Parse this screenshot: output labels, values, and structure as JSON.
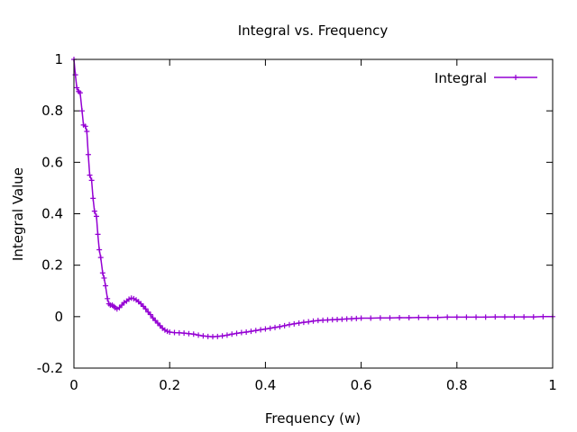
{
  "chart_data": {
    "type": "line",
    "title": "Integral vs. Frequency",
    "xlabel": "Frequency (w)",
    "ylabel": "Integral Value",
    "xlim": [
      0,
      1
    ],
    "ylim": [
      -0.2,
      1
    ],
    "x_ticks": [
      0,
      0.2,
      0.4,
      0.6,
      0.8,
      1
    ],
    "x_tick_labels": [
      "0",
      "0.2",
      "0.4",
      "0.6",
      "0.8",
      "1"
    ],
    "y_ticks": [
      -0.2,
      0,
      0.2,
      0.4,
      0.6,
      0.8,
      1
    ],
    "y_tick_labels": [
      "-0.2",
      "0",
      "0.2",
      "0.4",
      "0.6",
      "0.8",
      "1"
    ],
    "grid": false,
    "legend_position": "top-right",
    "marker": "plus",
    "series": [
      {
        "name": "Integral",
        "color": "#9400D3",
        "points": [
          [
            0.0,
            1.0
          ],
          [
            0.003,
            0.94
          ],
          [
            0.006,
            0.89
          ],
          [
            0.01,
            0.875
          ],
          [
            0.013,
            0.87
          ],
          [
            0.017,
            0.8
          ],
          [
            0.02,
            0.745
          ],
          [
            0.024,
            0.74
          ],
          [
            0.027,
            0.72
          ],
          [
            0.03,
            0.63
          ],
          [
            0.033,
            0.55
          ],
          [
            0.037,
            0.53
          ],
          [
            0.04,
            0.46
          ],
          [
            0.043,
            0.41
          ],
          [
            0.047,
            0.39
          ],
          [
            0.05,
            0.32
          ],
          [
            0.053,
            0.26
          ],
          [
            0.056,
            0.23
          ],
          [
            0.06,
            0.17
          ],
          [
            0.063,
            0.15
          ],
          [
            0.066,
            0.12
          ],
          [
            0.07,
            0.07
          ],
          [
            0.073,
            0.05
          ],
          [
            0.076,
            0.045
          ],
          [
            0.08,
            0.045
          ],
          [
            0.083,
            0.04
          ],
          [
            0.086,
            0.035
          ],
          [
            0.09,
            0.03
          ],
          [
            0.095,
            0.035
          ],
          [
            0.1,
            0.045
          ],
          [
            0.105,
            0.055
          ],
          [
            0.11,
            0.06
          ],
          [
            0.115,
            0.068
          ],
          [
            0.12,
            0.072
          ],
          [
            0.125,
            0.07
          ],
          [
            0.13,
            0.065
          ],
          [
            0.135,
            0.058
          ],
          [
            0.14,
            0.05
          ],
          [
            0.145,
            0.04
          ],
          [
            0.15,
            0.03
          ],
          [
            0.155,
            0.018
          ],
          [
            0.16,
            0.008
          ],
          [
            0.165,
            -0.005
          ],
          [
            0.17,
            -0.015
          ],
          [
            0.175,
            -0.025
          ],
          [
            0.18,
            -0.035
          ],
          [
            0.185,
            -0.045
          ],
          [
            0.19,
            -0.052
          ],
          [
            0.195,
            -0.057
          ],
          [
            0.2,
            -0.06
          ],
          [
            0.21,
            -0.062
          ],
          [
            0.22,
            -0.063
          ],
          [
            0.23,
            -0.064
          ],
          [
            0.24,
            -0.066
          ],
          [
            0.25,
            -0.068
          ],
          [
            0.26,
            -0.072
          ],
          [
            0.27,
            -0.075
          ],
          [
            0.28,
            -0.077
          ],
          [
            0.29,
            -0.078
          ],
          [
            0.3,
            -0.077
          ],
          [
            0.31,
            -0.075
          ],
          [
            0.32,
            -0.072
          ],
          [
            0.33,
            -0.068
          ],
          [
            0.34,
            -0.065
          ],
          [
            0.35,
            -0.062
          ],
          [
            0.36,
            -0.06
          ],
          [
            0.37,
            -0.057
          ],
          [
            0.38,
            -0.054
          ],
          [
            0.39,
            -0.051
          ],
          [
            0.4,
            -0.048
          ],
          [
            0.41,
            -0.045
          ],
          [
            0.42,
            -0.042
          ],
          [
            0.43,
            -0.039
          ],
          [
            0.44,
            -0.035
          ],
          [
            0.45,
            -0.031
          ],
          [
            0.46,
            -0.028
          ],
          [
            0.47,
            -0.025
          ],
          [
            0.48,
            -0.022
          ],
          [
            0.49,
            -0.02
          ],
          [
            0.5,
            -0.017
          ],
          [
            0.51,
            -0.015
          ],
          [
            0.52,
            -0.014
          ],
          [
            0.53,
            -0.013
          ],
          [
            0.54,
            -0.012
          ],
          [
            0.55,
            -0.011
          ],
          [
            0.56,
            -0.01
          ],
          [
            0.57,
            -0.009
          ],
          [
            0.58,
            -0.008
          ],
          [
            0.59,
            -0.007
          ],
          [
            0.6,
            -0.006
          ],
          [
            0.62,
            -0.006
          ],
          [
            0.64,
            -0.005
          ],
          [
            0.66,
            -0.005
          ],
          [
            0.68,
            -0.004
          ],
          [
            0.7,
            -0.004
          ],
          [
            0.72,
            -0.003
          ],
          [
            0.74,
            -0.003
          ],
          [
            0.76,
            -0.003
          ],
          [
            0.78,
            -0.002
          ],
          [
            0.8,
            -0.002
          ],
          [
            0.82,
            -0.002
          ],
          [
            0.84,
            -0.002
          ],
          [
            0.86,
            -0.002
          ],
          [
            0.88,
            -0.001
          ],
          [
            0.9,
            -0.001
          ],
          [
            0.92,
            -0.001
          ],
          [
            0.94,
            -0.001
          ],
          [
            0.96,
            -0.001
          ],
          [
            0.98,
            0.0
          ],
          [
            1.0,
            0.0
          ]
        ]
      }
    ]
  }
}
